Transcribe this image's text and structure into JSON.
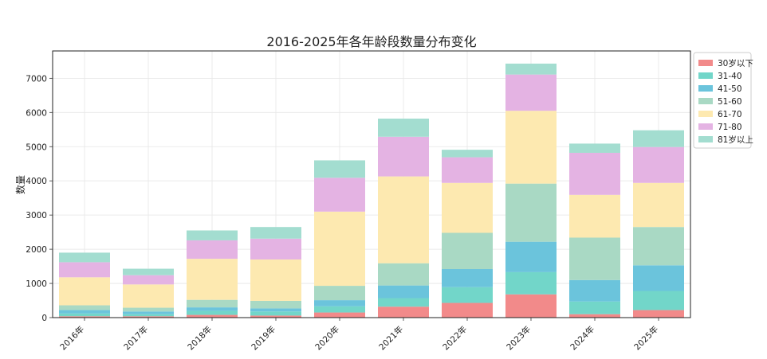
{
  "chart_data": {
    "type": "bar",
    "stacked": true,
    "title": "2016-2025年各年龄段数量分布变化",
    "xlabel": "",
    "ylabel": "数量",
    "ylim": [
      0,
      7800
    ],
    "yticks": [
      0,
      1000,
      2000,
      3000,
      4000,
      5000,
      6000,
      7000
    ],
    "grid": true,
    "legend_position": "top-right",
    "categories": [
      "2016年",
      "2017年",
      "2018年",
      "2019年",
      "2020年",
      "2021年",
      "2022年",
      "2023年",
      "2024年",
      "2025年"
    ],
    "series": [
      {
        "name": "30岁以下",
        "color": "#f28a8a",
        "values": [
          40,
          40,
          80,
          60,
          150,
          320,
          430,
          680,
          100,
          220
        ]
      },
      {
        "name": "31-40",
        "color": "#72d6c9",
        "values": [
          80,
          60,
          120,
          120,
          180,
          250,
          460,
          650,
          370,
          560
        ]
      },
      {
        "name": "41-50",
        "color": "#6bc4dc",
        "values": [
          100,
          80,
          100,
          90,
          180,
          370,
          530,
          890,
          630,
          750
        ]
      },
      {
        "name": "51-60",
        "color": "#a9d9c4",
        "values": [
          140,
          110,
          220,
          220,
          420,
          650,
          1060,
          1700,
          1240,
          1120
        ]
      },
      {
        "name": "61-70",
        "color": "#fde9b0",
        "values": [
          820,
          680,
          1200,
          1210,
          2170,
          2540,
          1460,
          2130,
          1250,
          1290
        ]
      },
      {
        "name": "71-80",
        "color": "#e4b3e3",
        "values": [
          440,
          270,
          540,
          610,
          990,
          1160,
          750,
          1060,
          1230,
          1050
        ]
      },
      {
        "name": "81岁以上",
        "color": "#a3ddd0",
        "values": [
          280,
          190,
          290,
          340,
          510,
          530,
          220,
          320,
          270,
          490
        ]
      }
    ]
  }
}
